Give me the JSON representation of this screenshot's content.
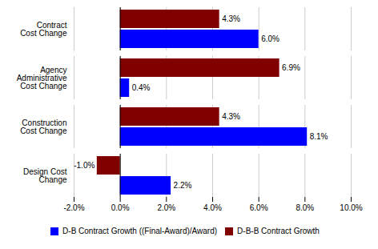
{
  "chart_data": {
    "type": "bar",
    "orientation": "horizontal",
    "categories": [
      "Contract\nCost Change",
      "Agency\nAdministrative\nCost Change",
      "Construction\nCost Change",
      "Design Cost\nChange"
    ],
    "series": [
      {
        "name": "D-B Contract Growth ((Final-Award)/Award)",
        "color": "#0000FF",
        "values": [
          6.0,
          0.4,
          8.1,
          2.2
        ],
        "value_labels": [
          "6.0%",
          "0.4%",
          "8.1%",
          "2.2%"
        ]
      },
      {
        "name": "D-B-B Contract Growth",
        "color": "#800000",
        "values": [
          4.3,
          6.9,
          4.3,
          -1.0
        ],
        "value_labels": [
          "4.3%",
          "6.9%",
          "4.3%",
          "-1.0%"
        ]
      }
    ],
    "xlim": [
      -2.0,
      10.0
    ],
    "xticks": [
      {
        "value": -2.0,
        "label": "-2.0%"
      },
      {
        "value": 0.0,
        "label": "0.0%"
      },
      {
        "value": 2.0,
        "label": "2.0%"
      },
      {
        "value": 4.0,
        "label": "4.0%"
      },
      {
        "value": 6.0,
        "label": "6.0%"
      },
      {
        "value": 8.0,
        "label": "8.0%"
      },
      {
        "value": 10.0,
        "label": "10.0%"
      }
    ],
    "grid": true,
    "data_labels": true,
    "legend": "bottom"
  }
}
